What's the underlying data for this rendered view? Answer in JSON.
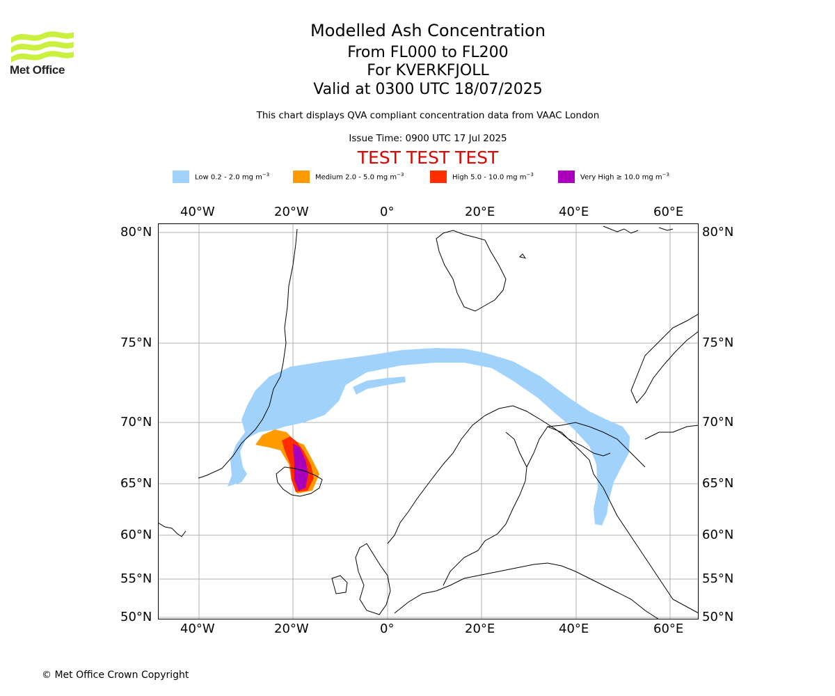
{
  "logo": {
    "text": "Met Office",
    "brand_color": "#c8f03c"
  },
  "title": {
    "line1": "Modelled Ash Concentration",
    "line2": "From FL000 to FL200",
    "line3": "For KVERKFJOLL",
    "line4": "Valid at 0300 UTC 18/07/2025"
  },
  "subtitle": "This chart displays QVA compliant concentration data from VAAC London",
  "issue_time": "Issue Time: 0900 UTC 17 Jul 2025",
  "test_banner": {
    "text": "TEST TEST TEST",
    "color": "#e00000"
  },
  "legend": [
    {
      "label": "Low 0.2 - 2.0 mg m",
      "exp": "−3",
      "color": "#a0d2fb"
    },
    {
      "label": "Medium 2.0 - 5.0 mg m",
      "exp": "−3",
      "color": "#ff9a00"
    },
    {
      "label": "High 5.0 - 10.0 mg m",
      "exp": "−3",
      "color": "#ff2d00"
    },
    {
      "label": "Very High  ≥  10.0 mg m",
      "exp": "−3",
      "color": "#aa00bb"
    }
  ],
  "map": {
    "lon_ticks": [
      "40°W",
      "20°W",
      "0°",
      "20°E",
      "40°E",
      "60°E"
    ],
    "lat_ticks": [
      "80°N",
      "75°N",
      "70°N",
      "65°N",
      "60°N",
      "55°N",
      "50°N"
    ],
    "extent_lon": [
      -49,
      66
    ],
    "extent_lat": [
      50,
      80.4
    ],
    "grid": true
  },
  "copyright": "© Met Office Crown Copyright"
}
